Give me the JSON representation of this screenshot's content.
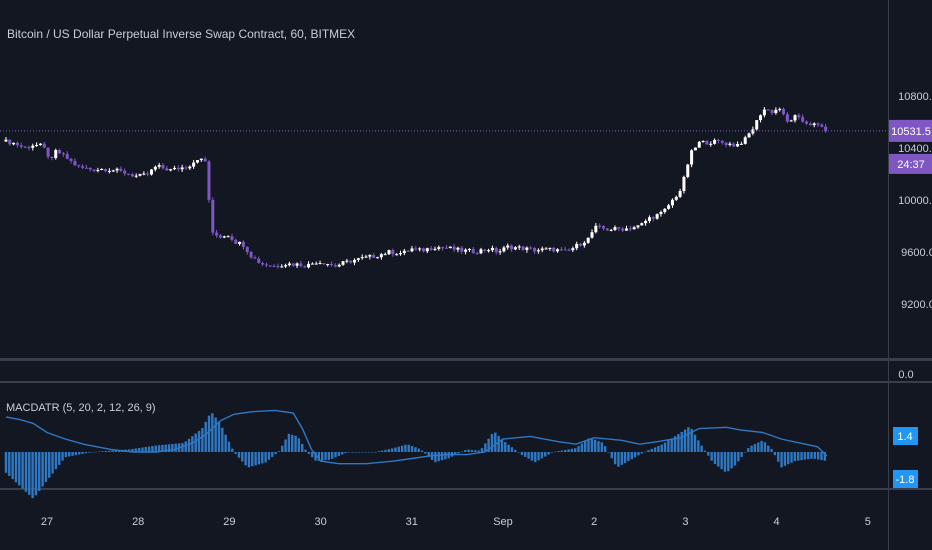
{
  "title": "Bitcoin / US Dollar Perpetual Inverse Swap Contract, 60, BITMEX",
  "colors": {
    "background": "#131722",
    "candle": "#7e57c2",
    "candle_up": "#ffffff",
    "price_line": "#7e57c2",
    "macd_line": "#2f78c4",
    "hist": "#2f78c4",
    "axis_text": "#c9cdd6",
    "separator": "#3a3e4a",
    "ind_badge": "#2196f3"
  },
  "price_badges": {
    "price": "10531.5",
    "countdown": "24:37"
  },
  "indicator": {
    "label": "MACDATR (5, 20, 2, 12, 26, 9)",
    "badge_upper": "1.4",
    "badge_lower": "-1.8"
  },
  "chart_data": [
    {
      "type": "candlestick",
      "y_axis_ticks": [
        "10800.0",
        "10400.0",
        "10000.0",
        "9600.0",
        "9200.0"
      ],
      "x_axis_ticks": [
        "27",
        "28",
        "29",
        "30",
        "31",
        "Sep",
        "2",
        "3",
        "4",
        "5"
      ],
      "last_price": 10531.5,
      "close_path": [
        [
          26.55,
          10450
        ],
        [
          26.65,
          10435
        ],
        [
          26.75,
          10400
        ],
        [
          26.85,
          10425
        ],
        [
          26.95,
          10415
        ],
        [
          27.05,
          10300
        ],
        [
          27.1,
          10380
        ],
        [
          27.2,
          10330
        ],
        [
          27.35,
          10250
        ],
        [
          27.5,
          10235
        ],
        [
          27.65,
          10240
        ],
        [
          27.8,
          10220
        ],
        [
          27.9,
          10200
        ],
        [
          28.0,
          10180
        ],
        [
          28.1,
          10195
        ],
        [
          28.2,
          10260
        ],
        [
          28.35,
          10230
        ],
        [
          28.55,
          10260
        ],
        [
          28.65,
          10320
        ],
        [
          28.75,
          10290
        ],
        [
          28.8,
          9740
        ],
        [
          28.9,
          9720
        ],
        [
          29.0,
          9735
        ],
        [
          29.05,
          9680
        ],
        [
          29.15,
          9660
        ],
        [
          29.25,
          9560
        ],
        [
          29.35,
          9510
        ],
        [
          29.5,
          9490
        ],
        [
          29.6,
          9510
        ],
        [
          29.75,
          9505
        ],
        [
          29.85,
          9495
        ],
        [
          29.95,
          9525
        ],
        [
          30.05,
          9520
        ],
        [
          30.15,
          9490
        ],
        [
          30.25,
          9515
        ],
        [
          30.35,
          9535
        ],
        [
          30.45,
          9550
        ],
        [
          30.6,
          9570
        ],
        [
          30.75,
          9600
        ],
        [
          30.9,
          9590
        ],
        [
          31.0,
          9625
        ],
        [
          31.1,
          9610
        ],
        [
          31.25,
          9640
        ],
        [
          31.4,
          9630
        ],
        [
          31.55,
          9610
        ],
        [
          31.7,
          9605
        ],
        [
          31.85,
          9625
        ],
        [
          31.95,
          9600
        ],
        [
          32.05,
          9640
        ],
        [
          32.2,
          9630
        ],
        [
          32.35,
          9615
        ],
        [
          32.55,
          9620
        ],
        [
          32.7,
          9600
        ],
        [
          32.8,
          9645
        ],
        [
          32.95,
          9710
        ],
        [
          33.0,
          9790
        ],
        [
          33.15,
          9775
        ],
        [
          33.35,
          9780
        ],
        [
          33.5,
          9800
        ],
        [
          33.6,
          9860
        ],
        [
          33.75,
          9900
        ],
        [
          33.85,
          9990
        ],
        [
          33.95,
          10080
        ],
        [
          34.0,
          10200
        ],
        [
          34.05,
          10350
        ],
        [
          34.15,
          10440
        ],
        [
          34.35,
          10450
        ],
        [
          34.55,
          10420
        ],
        [
          34.65,
          10460
        ],
        [
          34.75,
          10560
        ],
        [
          34.85,
          10700
        ],
        [
          34.95,
          10680
        ],
        [
          35.05,
          10710
        ],
        [
          35.1,
          10590
        ],
        [
          35.2,
          10640
        ],
        [
          35.3,
          10600
        ],
        [
          35.4,
          10580
        ],
        [
          35.5,
          10560
        ],
        [
          35.55,
          10531.5
        ]
      ]
    },
    {
      "type": "histogram+line",
      "y_axis_ticks": [
        "0.0"
      ],
      "x_axis_ticks": [
        "27",
        "28",
        "29",
        "30",
        "31",
        "Sep",
        "2",
        "3",
        "4",
        "5"
      ],
      "macd_line": [
        [
          26.55,
          1.35
        ],
        [
          26.7,
          1.25
        ],
        [
          26.85,
          1.1
        ],
        [
          27.0,
          0.75
        ],
        [
          27.2,
          0.5
        ],
        [
          27.4,
          0.3
        ],
        [
          27.7,
          0.1
        ],
        [
          27.95,
          0.0
        ],
        [
          28.2,
          0.0
        ],
        [
          28.4,
          0.1
        ],
        [
          28.6,
          0.35
        ],
        [
          28.75,
          0.7
        ],
        [
          28.9,
          1.2
        ],
        [
          29.05,
          1.45
        ],
        [
          29.25,
          1.55
        ],
        [
          29.5,
          1.6
        ],
        [
          29.7,
          1.5
        ],
        [
          29.8,
          0.9
        ],
        [
          29.9,
          0.1
        ],
        [
          30.0,
          -0.35
        ],
        [
          30.2,
          -0.45
        ],
        [
          30.5,
          -0.45
        ],
        [
          30.8,
          -0.35
        ],
        [
          31.0,
          -0.25
        ],
        [
          31.2,
          -0.15
        ],
        [
          31.4,
          -0.1
        ],
        [
          31.6,
          -0.1
        ],
        [
          31.8,
          0.0
        ],
        [
          32.0,
          0.5
        ],
        [
          32.3,
          0.6
        ],
        [
          32.6,
          0.4
        ],
        [
          32.8,
          0.3
        ],
        [
          33.0,
          0.55
        ],
        [
          33.3,
          0.45
        ],
        [
          33.5,
          0.3
        ],
        [
          33.7,
          0.4
        ],
        [
          33.95,
          0.55
        ],
        [
          34.15,
          0.9
        ],
        [
          34.45,
          0.95
        ],
        [
          34.6,
          0.85
        ],
        [
          34.85,
          0.75
        ],
        [
          35.05,
          0.5
        ],
        [
          35.25,
          0.35
        ],
        [
          35.45,
          0.2
        ],
        [
          35.55,
          -0.15
        ]
      ],
      "histogram_path": [
        [
          26.55,
          -0.8
        ],
        [
          26.7,
          -1.3
        ],
        [
          26.85,
          -1.8
        ],
        [
          27.0,
          -1.1
        ],
        [
          27.2,
          -0.2
        ],
        [
          27.5,
          0.0
        ],
        [
          27.9,
          0.1
        ],
        [
          28.2,
          0.25
        ],
        [
          28.5,
          0.35
        ],
        [
          28.7,
          0.9
        ],
        [
          28.8,
          1.55
        ],
        [
          28.9,
          1.1
        ],
        [
          29.05,
          0.0
        ],
        [
          29.2,
          -0.6
        ],
        [
          29.4,
          -0.4
        ],
        [
          29.55,
          0.05
        ],
        [
          29.65,
          0.7
        ],
        [
          29.75,
          0.6
        ],
        [
          29.85,
          0.0
        ],
        [
          29.95,
          -0.35
        ],
        [
          30.1,
          -0.3
        ],
        [
          30.3,
          0.0
        ],
        [
          30.6,
          0.0
        ],
        [
          30.8,
          0.15
        ],
        [
          30.95,
          0.3
        ],
        [
          31.1,
          0.1
        ],
        [
          31.25,
          -0.4
        ],
        [
          31.4,
          -0.25
        ],
        [
          31.6,
          0.1
        ],
        [
          31.75,
          0.05
        ],
        [
          31.9,
          0.8
        ],
        [
          32.0,
          0.45
        ],
        [
          32.2,
          -0.1
        ],
        [
          32.35,
          -0.4
        ],
        [
          32.55,
          0.0
        ],
        [
          32.8,
          0.15
        ],
        [
          32.95,
          0.55
        ],
        [
          33.1,
          0.35
        ],
        [
          33.25,
          -0.6
        ],
        [
          33.4,
          -0.3
        ],
        [
          33.55,
          0.0
        ],
        [
          33.75,
          0.3
        ],
        [
          33.95,
          0.75
        ],
        [
          34.05,
          1.0
        ],
        [
          34.15,
          0.4
        ],
        [
          34.3,
          -0.4
        ],
        [
          34.45,
          -0.8
        ],
        [
          34.55,
          -0.5
        ],
        [
          34.7,
          0.2
        ],
        [
          34.85,
          0.45
        ],
        [
          34.95,
          0.1
        ],
        [
          35.05,
          -0.6
        ],
        [
          35.2,
          -0.35
        ],
        [
          35.4,
          -0.25
        ],
        [
          35.55,
          -0.35
        ]
      ]
    }
  ]
}
